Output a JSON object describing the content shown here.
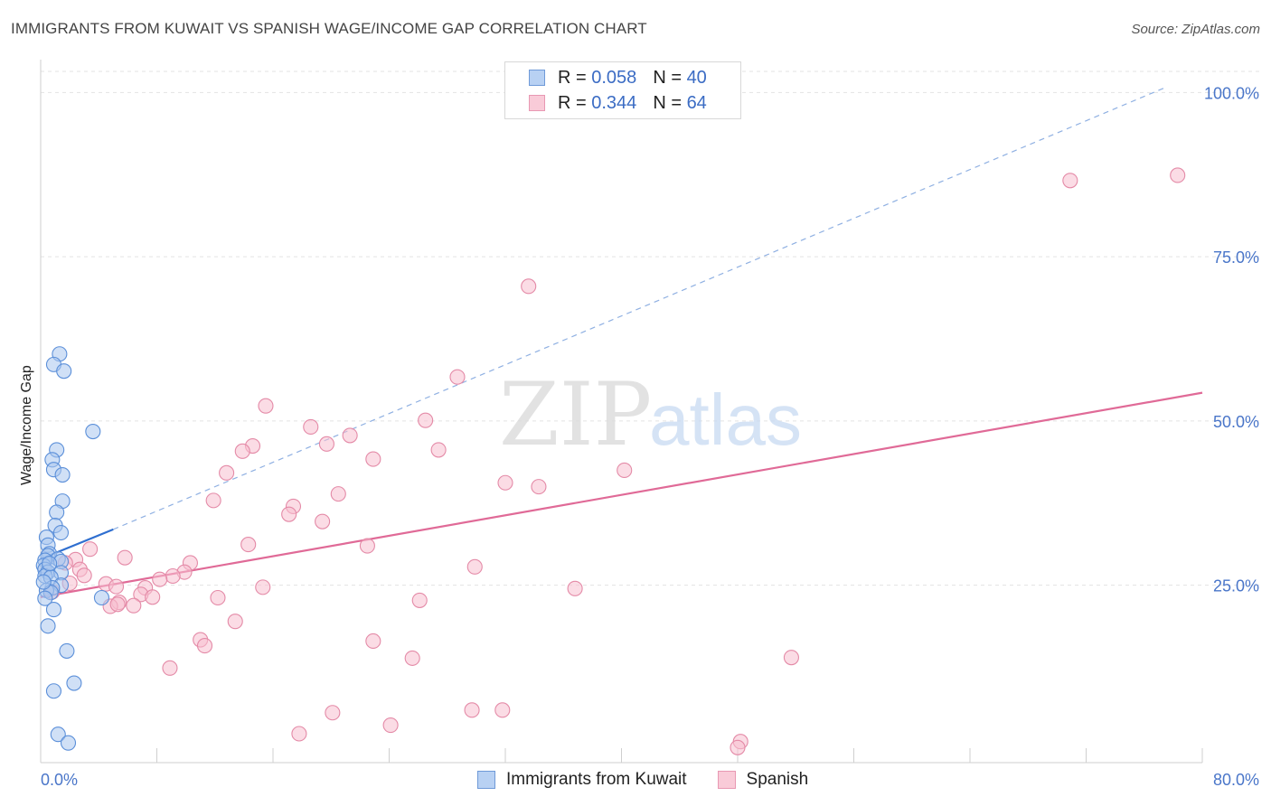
{
  "header": {
    "title": "IMMIGRANTS FROM KUWAIT VS SPANISH WAGE/INCOME GAP CORRELATION CHART",
    "source": "Source: ZipAtlas.com"
  },
  "legend": {
    "rows": [
      {
        "r_label": "R = ",
        "r_value": "0.058",
        "n_label": "N = ",
        "n_value": "40"
      },
      {
        "r_label": "R = ",
        "r_value": "0.344",
        "n_label": "N = ",
        "n_value": "64"
      }
    ]
  },
  "watermark": {
    "zip": "ZIP",
    "atlas": "atlas"
  },
  "colors": {
    "kuwait_fill": "#a9c6ee",
    "kuwait_stroke": "#5b8fd9",
    "kuwait_line": "#2f6fd0",
    "spanish_fill": "#f7bfd0",
    "spanish_stroke": "#e48aa7",
    "spanish_line": "#e06a97",
    "tick_text": "#4a76c9",
    "grid": "#e3e3e3"
  },
  "chart_data": {
    "type": "scatter",
    "title": "IMMIGRANTS FROM KUWAIT VS SPANISH WAGE/INCOME GAP CORRELATION CHART",
    "xlabel": "",
    "ylabel": "Wage/Income Gap",
    "xlim": [
      0,
      80
    ],
    "ylim": [
      -2,
      105
    ],
    "x_tick_labels": [
      "0.0%",
      "80.0%"
    ],
    "y_ticks": [
      25,
      50,
      75,
      100
    ],
    "y_tick_labels": [
      "25.0%",
      "50.0%",
      "75.0%",
      "100.0%"
    ],
    "legend_placement": "top-center",
    "series": [
      {
        "name": "Immigrants from Kuwait",
        "r": 0.058,
        "n": 40,
        "points": [
          [
            1.3,
            60.2
          ],
          [
            0.9,
            58.6
          ],
          [
            1.6,
            57.6
          ],
          [
            3.6,
            48.4
          ],
          [
            1.1,
            45.6
          ],
          [
            0.8,
            44.1
          ],
          [
            0.9,
            42.6
          ],
          [
            1.5,
            41.8
          ],
          [
            1.5,
            37.8
          ],
          [
            1.1,
            36.1
          ],
          [
            1.0,
            34.1
          ],
          [
            1.4,
            33.0
          ],
          [
            0.4,
            32.3
          ],
          [
            0.5,
            31.1
          ],
          [
            0.6,
            29.8
          ],
          [
            0.5,
            29.5
          ],
          [
            1.2,
            29.0
          ],
          [
            1.4,
            28.6
          ],
          [
            0.3,
            28.8
          ],
          [
            0.2,
            28.0
          ],
          [
            0.3,
            27.4
          ],
          [
            0.5,
            27.0
          ],
          [
            1.4,
            26.9
          ],
          [
            0.3,
            26.4
          ],
          [
            0.7,
            26.2
          ],
          [
            1.4,
            25.0
          ],
          [
            0.8,
            24.6
          ],
          [
            0.4,
            24.2
          ],
          [
            0.7,
            23.9
          ],
          [
            0.3,
            23.0
          ],
          [
            4.2,
            23.1
          ],
          [
            0.9,
            21.3
          ],
          [
            0.5,
            18.8
          ],
          [
            1.8,
            15.0
          ],
          [
            2.3,
            10.1
          ],
          [
            0.9,
            8.9
          ],
          [
            1.2,
            2.3
          ],
          [
            1.9,
            1.0
          ],
          [
            0.2,
            25.5
          ],
          [
            0.6,
            28.3
          ]
        ]
      },
      {
        "name": "Spanish",
        "r": 0.344,
        "n": 64,
        "points": [
          [
            78.3,
            87.4
          ],
          [
            70.9,
            86.6
          ],
          [
            33.6,
            70.5
          ],
          [
            28.7,
            56.7
          ],
          [
            15.5,
            52.3
          ],
          [
            26.5,
            50.1
          ],
          [
            18.6,
            49.1
          ],
          [
            21.3,
            47.8
          ],
          [
            14.6,
            46.2
          ],
          [
            13.9,
            45.4
          ],
          [
            19.7,
            46.5
          ],
          [
            27.4,
            45.6
          ],
          [
            22.9,
            44.2
          ],
          [
            40.2,
            42.5
          ],
          [
            12.8,
            42.1
          ],
          [
            32.0,
            40.6
          ],
          [
            34.3,
            40.0
          ],
          [
            20.5,
            38.9
          ],
          [
            11.9,
            37.9
          ],
          [
            17.4,
            37.0
          ],
          [
            17.1,
            35.8
          ],
          [
            19.4,
            34.7
          ],
          [
            14.3,
            31.2
          ],
          [
            22.5,
            31.0
          ],
          [
            3.4,
            30.5
          ],
          [
            5.8,
            29.2
          ],
          [
            2.4,
            28.9
          ],
          [
            1.7,
            28.4
          ],
          [
            10.3,
            28.4
          ],
          [
            2.7,
            27.4
          ],
          [
            9.9,
            27.0
          ],
          [
            29.9,
            27.8
          ],
          [
            9.1,
            26.4
          ],
          [
            8.2,
            25.9
          ],
          [
            4.5,
            25.2
          ],
          [
            5.2,
            24.8
          ],
          [
            15.3,
            24.7
          ],
          [
            7.2,
            24.6
          ],
          [
            36.8,
            24.5
          ],
          [
            6.9,
            23.6
          ],
          [
            7.7,
            23.2
          ],
          [
            12.2,
            23.1
          ],
          [
            26.1,
            22.7
          ],
          [
            5.4,
            22.4
          ],
          [
            4.8,
            21.8
          ],
          [
            6.4,
            21.9
          ],
          [
            13.4,
            19.5
          ],
          [
            11.0,
            16.7
          ],
          [
            22.9,
            16.5
          ],
          [
            11.3,
            15.8
          ],
          [
            25.6,
            13.9
          ],
          [
            51.7,
            14.0
          ],
          [
            8.9,
            12.4
          ],
          [
            29.7,
            6.0
          ],
          [
            31.8,
            6.0
          ],
          [
            20.1,
            5.6
          ],
          [
            24.1,
            3.7
          ],
          [
            17.8,
            2.4
          ],
          [
            48.2,
            1.2
          ],
          [
            48.0,
            0.3
          ],
          [
            2.0,
            25.3
          ],
          [
            5.3,
            22.1
          ],
          [
            0.8,
            24.0
          ],
          [
            3.0,
            26.5
          ]
        ]
      }
    ],
    "trend_lines": [
      {
        "series": "Immigrants from Kuwait",
        "solid": [
          [
            0,
            29.0
          ],
          [
            5,
            33.5
          ]
        ],
        "dashed_extension": [
          [
            5,
            33.5
          ],
          [
            77.5,
            100.8
          ]
        ]
      },
      {
        "series": "Spanish",
        "solid": [
          [
            0,
            23.2
          ],
          [
            80,
            54.3
          ]
        ]
      }
    ]
  }
}
